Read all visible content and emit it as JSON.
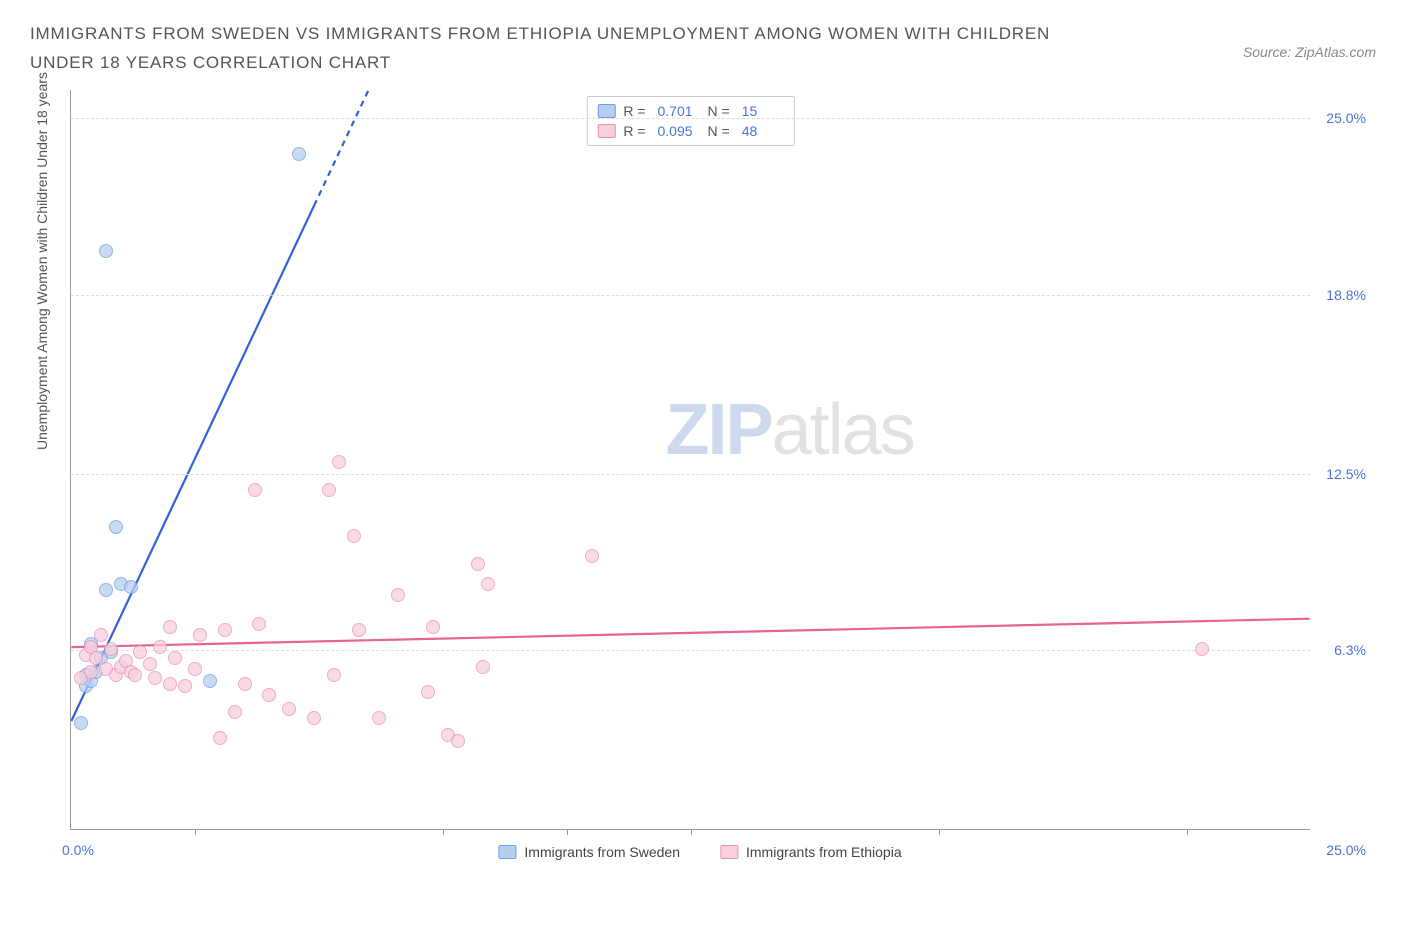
{
  "title": "IMMIGRANTS FROM SWEDEN VS IMMIGRANTS FROM ETHIOPIA UNEMPLOYMENT AMONG WOMEN WITH CHILDREN UNDER 18 YEARS CORRELATION CHART",
  "source_prefix": "Source: ",
  "source_name": "ZipAtlas.com",
  "watermark_a": "ZIP",
  "watermark_b": "atlas",
  "chart": {
    "type": "scatter",
    "xlim": [
      0,
      25
    ],
    "ylim": [
      0,
      26
    ],
    "x_origin_label": "0.0%",
    "x_end_label": "25.0%",
    "y_ticks": [
      {
        "v": 6.3,
        "label": "6.3%"
      },
      {
        "v": 12.5,
        "label": "12.5%"
      },
      {
        "v": 18.8,
        "label": "18.8%"
      },
      {
        "v": 25.0,
        "label": "25.0%"
      }
    ],
    "x_tick_positions": [
      2.5,
      7.5,
      10,
      12.5,
      17.5,
      22.5
    ],
    "y_axis_label": "Unemployment Among Women with Children Under 18 years",
    "grid_color": "#dddddd",
    "background_color": "#ffffff",
    "marker_radius": 7,
    "marker_stroke_width": 1.2,
    "trend_line_width": 2.2
  },
  "series": [
    {
      "id": "sweden",
      "legend_label": "Immigrants from Sweden",
      "fill": "#b8cef0",
      "stroke": "#6e9fe0",
      "line_color": "#2f62d9",
      "R_label": "R =",
      "R": "0.701",
      "N_label": "N =",
      "N": "15",
      "points": [
        {
          "x": 0.2,
          "y": 3.7
        },
        {
          "x": 0.3,
          "y": 5.0
        },
        {
          "x": 0.3,
          "y": 5.4
        },
        {
          "x": 0.4,
          "y": 5.2
        },
        {
          "x": 0.4,
          "y": 6.5
        },
        {
          "x": 0.5,
          "y": 5.5
        },
        {
          "x": 0.6,
          "y": 6.0
        },
        {
          "x": 0.7,
          "y": 8.4
        },
        {
          "x": 0.8,
          "y": 6.2
        },
        {
          "x": 1.0,
          "y": 8.6
        },
        {
          "x": 1.2,
          "y": 8.5
        },
        {
          "x": 0.9,
          "y": 10.6
        },
        {
          "x": 0.7,
          "y": 20.3
        },
        {
          "x": 2.8,
          "y": 5.2
        },
        {
          "x": 4.6,
          "y": 23.7
        }
      ],
      "trend": {
        "x1": 0,
        "y1": 3.8,
        "x2": 6.0,
        "y2": 26,
        "dash_after_x": 4.9
      }
    },
    {
      "id": "ethiopia",
      "legend_label": "Immigrants from Ethiopia",
      "fill": "#f8d0dd",
      "stroke": "#e98fb8",
      "line_color": "#e86294",
      "R_label": "R =",
      "R": "0.095",
      "N_label": "N =",
      "N": "48",
      "points": [
        {
          "x": 0.2,
          "y": 5.3
        },
        {
          "x": 0.3,
          "y": 6.1
        },
        {
          "x": 0.4,
          "y": 6.4
        },
        {
          "x": 0.4,
          "y": 5.5
        },
        {
          "x": 0.5,
          "y": 6.0
        },
        {
          "x": 0.6,
          "y": 6.8
        },
        {
          "x": 0.7,
          "y": 5.6
        },
        {
          "x": 0.8,
          "y": 6.3
        },
        {
          "x": 0.9,
          "y": 5.4
        },
        {
          "x": 1.0,
          "y": 5.7
        },
        {
          "x": 1.1,
          "y": 5.9
        },
        {
          "x": 1.2,
          "y": 5.5
        },
        {
          "x": 1.3,
          "y": 5.4
        },
        {
          "x": 1.4,
          "y": 6.2
        },
        {
          "x": 1.6,
          "y": 5.8
        },
        {
          "x": 1.7,
          "y": 5.3
        },
        {
          "x": 1.8,
          "y": 6.4
        },
        {
          "x": 2.0,
          "y": 5.1
        },
        {
          "x": 2.1,
          "y": 6.0
        },
        {
          "x": 2.3,
          "y": 5.0
        },
        {
          "x": 2.5,
          "y": 5.6
        },
        {
          "x": 2.0,
          "y": 7.1
        },
        {
          "x": 2.6,
          "y": 6.8
        },
        {
          "x": 3.1,
          "y": 7.0
        },
        {
          "x": 3.0,
          "y": 3.2
        },
        {
          "x": 3.3,
          "y": 4.1
        },
        {
          "x": 3.5,
          "y": 5.1
        },
        {
          "x": 3.8,
          "y": 7.2
        },
        {
          "x": 3.7,
          "y": 11.9
        },
        {
          "x": 4.0,
          "y": 4.7
        },
        {
          "x": 4.4,
          "y": 4.2
        },
        {
          "x": 4.9,
          "y": 3.9
        },
        {
          "x": 5.2,
          "y": 11.9
        },
        {
          "x": 5.3,
          "y": 5.4
        },
        {
          "x": 5.4,
          "y": 12.9
        },
        {
          "x": 5.7,
          "y": 10.3
        },
        {
          "x": 5.8,
          "y": 7.0
        },
        {
          "x": 6.2,
          "y": 3.9
        },
        {
          "x": 6.6,
          "y": 8.2
        },
        {
          "x": 7.2,
          "y": 4.8
        },
        {
          "x": 7.3,
          "y": 7.1
        },
        {
          "x": 7.6,
          "y": 3.3
        },
        {
          "x": 7.8,
          "y": 3.1
        },
        {
          "x": 8.2,
          "y": 9.3
        },
        {
          "x": 8.3,
          "y": 5.7
        },
        {
          "x": 8.4,
          "y": 8.6
        },
        {
          "x": 10.5,
          "y": 9.6
        },
        {
          "x": 22.8,
          "y": 6.3
        }
      ],
      "trend": {
        "x1": 0,
        "y1": 6.4,
        "x2": 25,
        "y2": 7.4
      }
    }
  ]
}
